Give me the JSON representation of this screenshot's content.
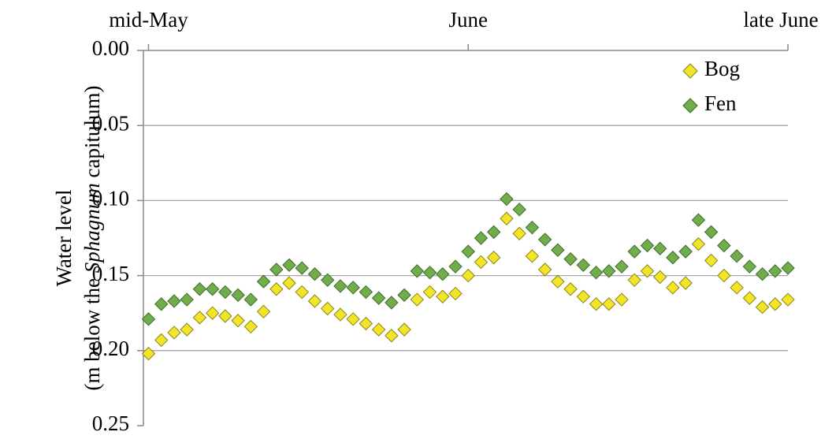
{
  "chart_data": {
    "type": "scatter",
    "ylabel": [
      "Water level",
      "(m below the ",
      "Sphagnum",
      " capitulum)"
    ],
    "x": [
      0,
      1,
      2,
      3,
      4,
      5,
      6,
      7,
      8,
      9,
      10,
      11,
      12,
      13,
      14,
      15,
      16,
      17,
      18,
      19,
      20,
      21,
      22,
      23,
      24,
      25,
      26,
      27,
      28,
      29,
      30,
      31,
      32,
      33,
      34,
      35,
      36,
      37,
      38,
      39,
      40,
      41,
      42,
      43,
      44,
      45,
      46,
      47,
      48,
      49,
      50
    ],
    "xlim": [
      -0.4,
      50
    ],
    "xticks": [
      {
        "value": 0,
        "label": "mid-May"
      },
      {
        "value": 25,
        "label": "June"
      },
      {
        "value": 50,
        "label": "late June"
      }
    ],
    "ylim": [
      0,
      0.25
    ],
    "y_inverted": true,
    "yticks": [
      {
        "value": 0,
        "label": "0.00"
      },
      {
        "value": 0.05,
        "label": "0.05"
      },
      {
        "value": 0.1,
        "label": "0.10"
      },
      {
        "value": 0.15,
        "label": "0.15"
      },
      {
        "value": 0.2,
        "label": "0.20"
      },
      {
        "value": 0.25,
        "label": "0.25"
      }
    ],
    "grid": true,
    "legend": "upper right",
    "series": [
      {
        "name": "Bog",
        "color": "#f2e528",
        "values": [
          0.202,
          0.193,
          0.188,
          0.186,
          0.178,
          0.175,
          0.177,
          0.18,
          0.184,
          0.174,
          0.159,
          0.155,
          0.161,
          0.167,
          0.172,
          0.176,
          0.179,
          0.182,
          0.186,
          0.19,
          0.186,
          0.166,
          0.161,
          0.164,
          0.162,
          0.15,
          0.141,
          0.138,
          0.112,
          0.122,
          0.137,
          0.146,
          0.154,
          0.159,
          0.164,
          0.169,
          0.169,
          0.166,
          0.153,
          0.147,
          0.151,
          0.158,
          0.155,
          0.129,
          0.14,
          0.15,
          0.158,
          0.165,
          0.171,
          0.169,
          0.166
        ]
      },
      {
        "name": "Fen",
        "color": "#72ad4c",
        "values": [
          0.179,
          0.169,
          0.167,
          0.166,
          0.159,
          0.159,
          0.161,
          0.163,
          0.166,
          0.154,
          0.146,
          0.143,
          0.145,
          0.149,
          0.153,
          0.157,
          0.158,
          0.161,
          0.165,
          0.168,
          0.163,
          0.147,
          0.148,
          0.149,
          0.144,
          0.134,
          0.125,
          0.121,
          0.099,
          0.106,
          0.118,
          0.126,
          0.133,
          0.139,
          0.143,
          0.148,
          0.147,
          0.144,
          0.134,
          0.13,
          0.132,
          0.138,
          0.134,
          0.113,
          0.121,
          0.13,
          0.137,
          0.144,
          0.149,
          0.147,
          0.145
        ]
      }
    ]
  }
}
